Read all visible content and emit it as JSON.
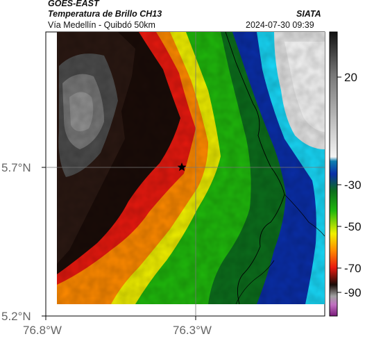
{
  "header": {
    "satellite": "GOES-EAST",
    "product": "Temperatura de Brillo CH13",
    "route": "Vía Medellín - Quibdó 50km",
    "agency": "SIATA",
    "datetime": "2024-07-30 09:39"
  },
  "map": {
    "lat_ticks": [
      "5.7°N",
      "5.2°N"
    ],
    "lon_ticks": [
      "76.8°W",
      "76.3°W"
    ],
    "marker": "star-marker",
    "crosshair": true,
    "colors": {
      "hot_black": "#1a0c08",
      "red": "#e8190f",
      "orange": "#ff8a00",
      "yellow": "#f0f000",
      "green": "#1fb80c",
      "dark_green": "#0c6e1c",
      "blue": "#0a2ea8",
      "cyan": "#18d8f8",
      "light": "#e6e6e6"
    }
  },
  "colorbar": {
    "labels": [
      "20",
      "-30",
      "-50",
      "-70",
      "-90"
    ]
  }
}
